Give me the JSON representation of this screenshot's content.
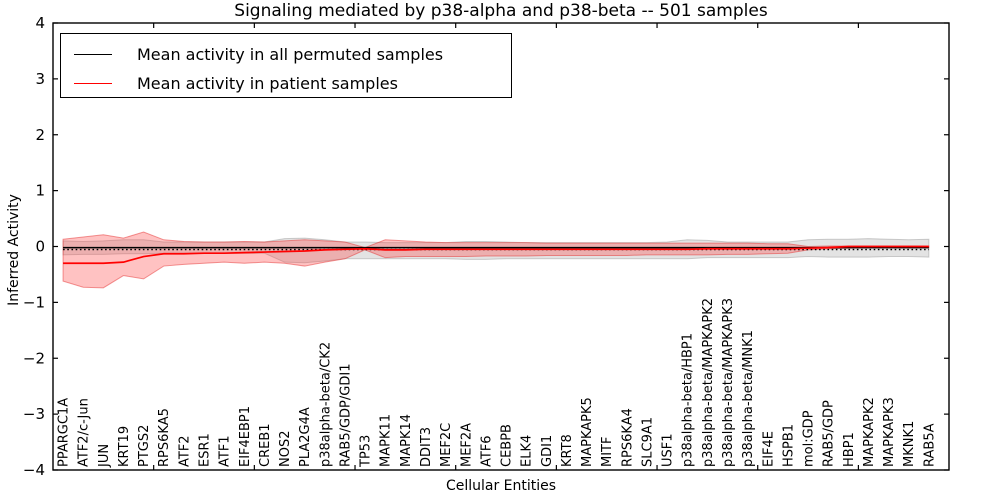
{
  "chart_data": {
    "type": "line",
    "title": "Signaling mediated by p38-alpha and p38-beta -- 501 samples",
    "xlabel": "Cellular Entities",
    "ylabel": "Inferred Activity",
    "ylim": [
      -4,
      4
    ],
    "yticks": [
      -4,
      -3,
      -2,
      -1,
      0,
      1,
      2,
      3,
      4
    ],
    "xlim": [
      0,
      44.5
    ],
    "xticks": [
      5,
      10,
      15,
      20,
      25,
      30,
      35,
      40
    ],
    "grid": false,
    "legend": {
      "position": "upper left",
      "entries": [
        {
          "label": "Mean activity in all permuted samples",
          "color": "#000000"
        },
        {
          "label": "Mean activity in patient samples",
          "color": "#ff0000"
        }
      ]
    },
    "reference_line": {
      "value": -0.055,
      "style": "dotted",
      "color": "#000000"
    },
    "categories": [
      "PPARGC1A",
      "ATF2/c-Jun",
      "JUN",
      "KRT19",
      "PTGS2",
      "RPS6KA5",
      "ATF2",
      "ESR1",
      "ATF1",
      "EIF4EBP1",
      "CREB1",
      "NOS2",
      "PLA2G4A",
      "p38alpha-beta/CK2",
      "RAB5/GDP/GDI1",
      "TP53",
      "MAPK11",
      "MAPK14",
      "DDIT3",
      "MEF2C",
      "MEF2A",
      "ATF6",
      "CEBPB",
      "ELK4",
      "GDI1",
      "KRT8",
      "MAPKAPK5",
      "MITF",
      "RPS6KA4",
      "SLC9A1",
      "USF1",
      "p38alpha-beta/HBP1",
      "p38alpha-beta/MAPKAPK2",
      "p38alpha-beta/MAPKAPK3",
      "p38alpha-beta/MNK1",
      "EIF4E",
      "HSPB1",
      "mol:GDP",
      "RAB5/GDP",
      "HBP1",
      "MAPKAPK2",
      "MAPKAPK3",
      "MKNK1",
      "RAB5A"
    ],
    "series": [
      {
        "name": "Mean activity in all permuted samples",
        "color": "#000000",
        "width": 1.6,
        "values": [
          -0.02,
          -0.02,
          -0.02,
          -0.02,
          -0.02,
          -0.02,
          -0.02,
          -0.02,
          -0.02,
          -0.02,
          -0.02,
          -0.02,
          -0.02,
          -0.02,
          -0.02,
          -0.02,
          -0.02,
          -0.02,
          -0.02,
          -0.02,
          -0.02,
          -0.02,
          -0.02,
          -0.02,
          -0.02,
          -0.02,
          -0.02,
          -0.02,
          -0.02,
          -0.02,
          -0.02,
          -0.02,
          -0.02,
          -0.02,
          -0.02,
          -0.02,
          -0.02,
          -0.02,
          -0.02,
          -0.02,
          -0.02,
          -0.02,
          -0.02,
          -0.02
        ]
      },
      {
        "name": "Mean activity in patient samples",
        "color": "#ff0000",
        "width": 1.7,
        "values": [
          -0.3,
          -0.3,
          -0.3,
          -0.28,
          -0.18,
          -0.13,
          -0.13,
          -0.12,
          -0.12,
          -0.11,
          -0.1,
          -0.09,
          -0.08,
          -0.06,
          -0.05,
          -0.04,
          -0.06,
          -0.06,
          -0.05,
          -0.05,
          -0.05,
          -0.05,
          -0.05,
          -0.05,
          -0.05,
          -0.05,
          -0.05,
          -0.05,
          -0.05,
          -0.05,
          -0.05,
          -0.05,
          -0.04,
          -0.04,
          -0.04,
          -0.04,
          -0.04,
          -0.03,
          -0.02,
          0.0,
          0.0,
          0.0,
          0.0,
          0.0
        ]
      }
    ],
    "bands": [
      {
        "name": "permuted-sample-range",
        "fill": "rgba(100,100,100,0.18)",
        "stroke": "rgba(120,120,120,0.35)",
        "upper": [
          0.1,
          0.09,
          0.1,
          0.12,
          0.12,
          0.08,
          0.08,
          0.08,
          0.08,
          0.08,
          0.08,
          0.14,
          0.15,
          0.12,
          0.08,
          0.08,
          0.07,
          0.07,
          0.07,
          0.07,
          0.09,
          0.09,
          0.08,
          0.07,
          0.07,
          0.07,
          0.07,
          0.07,
          0.07,
          0.07,
          0.08,
          0.12,
          0.11,
          0.08,
          0.08,
          0.08,
          0.08,
          0.12,
          0.13,
          0.13,
          0.14,
          0.13,
          0.12,
          0.13
        ],
        "lower": [
          -0.15,
          -0.14,
          -0.14,
          -0.13,
          -0.13,
          -0.12,
          -0.12,
          -0.12,
          -0.12,
          -0.12,
          -0.12,
          -0.28,
          -0.29,
          -0.26,
          -0.22,
          -0.22,
          -0.22,
          -0.22,
          -0.22,
          -0.22,
          -0.23,
          -0.23,
          -0.22,
          -0.22,
          -0.22,
          -0.22,
          -0.22,
          -0.22,
          -0.22,
          -0.22,
          -0.22,
          -0.22,
          -0.2,
          -0.2,
          -0.2,
          -0.2,
          -0.2,
          -0.18,
          -0.19,
          -0.19,
          -0.19,
          -0.18,
          -0.18,
          -0.19
        ]
      },
      {
        "name": "patient-sample-range",
        "fill": "rgba(255,70,70,0.33)",
        "stroke": "rgba(230,50,50,0.5)",
        "upper": [
          0.13,
          0.17,
          0.21,
          0.15,
          0.26,
          0.12,
          0.09,
          0.08,
          0.08,
          0.09,
          0.08,
          0.1,
          0.12,
          0.1,
          0.08,
          -0.02,
          0.12,
          0.1,
          0.08,
          0.07,
          0.07,
          0.07,
          0.07,
          0.07,
          0.06,
          0.06,
          0.06,
          0.06,
          0.06,
          0.06,
          0.06,
          0.06,
          0.06,
          0.06,
          0.06,
          0.05,
          0.05,
          0.0,
          0.01,
          0.01,
          0.01,
          0.01,
          0.01,
          0.01
        ],
        "lower": [
          -0.62,
          -0.73,
          -0.74,
          -0.52,
          -0.58,
          -0.35,
          -0.32,
          -0.3,
          -0.28,
          -0.3,
          -0.28,
          -0.3,
          -0.35,
          -0.28,
          -0.22,
          -0.06,
          -0.2,
          -0.18,
          -0.18,
          -0.18,
          -0.18,
          -0.17,
          -0.17,
          -0.17,
          -0.16,
          -0.16,
          -0.16,
          -0.16,
          -0.16,
          -0.15,
          -0.15,
          -0.15,
          -0.15,
          -0.14,
          -0.14,
          -0.13,
          -0.12,
          -0.06,
          -0.04,
          -0.03,
          -0.02,
          -0.02,
          -0.02,
          -0.02
        ]
      }
    ]
  }
}
